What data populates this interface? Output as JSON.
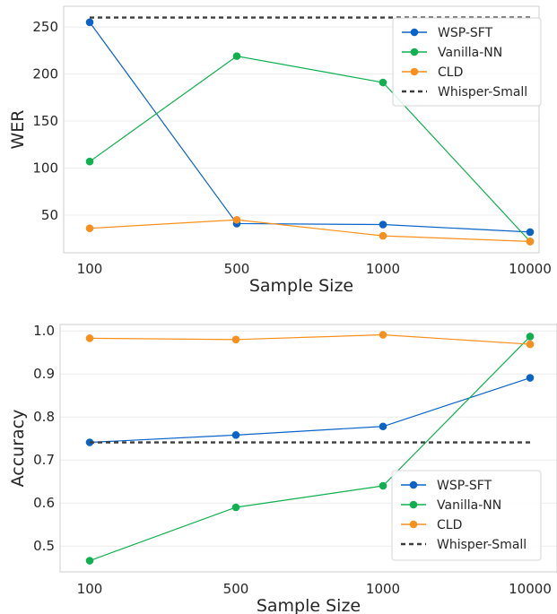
{
  "chart_data": [
    {
      "type": "line",
      "categories": [
        "100",
        "500",
        "1000",
        "10000"
      ],
      "xlabel": "Sample Size",
      "ylabel": "WER",
      "ylim": [
        10,
        272
      ],
      "yticks": [
        50,
        100,
        150,
        200,
        250
      ],
      "grid": true,
      "legend_position": "top-right",
      "series": [
        {
          "name": "WSP-SFT",
          "values": [
            255,
            41,
            40,
            32
          ],
          "color": "#0a63c7",
          "style": "solid",
          "marker": true
        },
        {
          "name": "Vanilla-NN",
          "values": [
            107,
            219,
            191,
            22
          ],
          "color": "#0fb04e",
          "style": "solid",
          "marker": true
        },
        {
          "name": "CLD",
          "values": [
            36,
            45,
            28,
            22
          ],
          "color": "#f7901e",
          "style": "solid",
          "marker": true
        },
        {
          "name": "Whisper-Small",
          "values": [
            260,
            260,
            260,
            260
          ],
          "color": "#3d3d3d",
          "style": "dashed",
          "marker": false
        }
      ]
    },
    {
      "type": "line",
      "categories": [
        "100",
        "500",
        "1000",
        "10000"
      ],
      "xlabel": "Sample Size",
      "ylabel": "Accuracy",
      "ylim": [
        0.44,
        1.015
      ],
      "yticks": [
        0.5,
        0.6,
        0.7,
        0.8,
        0.9,
        1.0
      ],
      "grid": true,
      "legend_position": "bottom-right",
      "series": [
        {
          "name": "WSP-SFT",
          "values": [
            0.741,
            0.758,
            0.778,
            0.891
          ],
          "color": "#0a63c7",
          "style": "solid",
          "marker": true
        },
        {
          "name": "Vanilla-NN",
          "values": [
            0.466,
            0.59,
            0.64,
            0.987
          ],
          "color": "#0fb04e",
          "style": "solid",
          "marker": true
        },
        {
          "name": "CLD",
          "values": [
            0.983,
            0.98,
            0.991,
            0.969
          ],
          "color": "#f7901e",
          "style": "solid",
          "marker": true
        },
        {
          "name": "Whisper-Small",
          "values": [
            0.741,
            0.741,
            0.741,
            0.741
          ],
          "color": "#3d3d3d",
          "style": "dashed",
          "marker": false
        }
      ]
    }
  ]
}
